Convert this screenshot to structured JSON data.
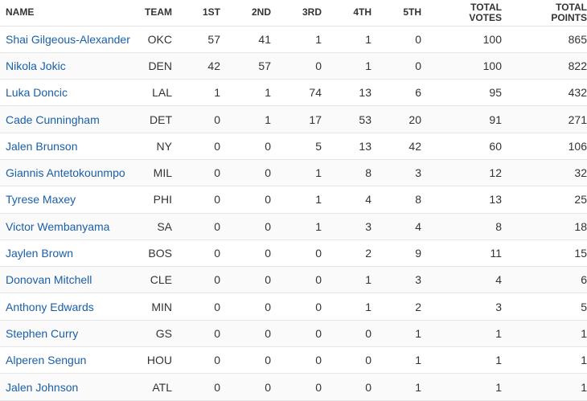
{
  "headers": {
    "name": "NAME",
    "team": "TEAM",
    "first": "1ST",
    "second": "2ND",
    "third": "3RD",
    "fourth": "4TH",
    "fifth": "5TH",
    "total_votes_line1": "TOTAL",
    "total_votes_line2": "VOTES",
    "total_points_line1": "TOTAL",
    "total_points_line2": "POINTS"
  },
  "rows": [
    {
      "name": "Shai Gilgeous-Alexander",
      "team": "OKC",
      "first": "57",
      "second": "41",
      "third": "1",
      "fourth": "1",
      "fifth": "0",
      "total_votes": "100",
      "total_points": "865"
    },
    {
      "name": "Nikola Jokic",
      "team": "DEN",
      "first": "42",
      "second": "57",
      "third": "0",
      "fourth": "1",
      "fifth": "0",
      "total_votes": "100",
      "total_points": "822"
    },
    {
      "name": "Luka Doncic",
      "team": "LAL",
      "first": "1",
      "second": "1",
      "third": "74",
      "fourth": "13",
      "fifth": "6",
      "total_votes": "95",
      "total_points": "432"
    },
    {
      "name": "Cade Cunningham",
      "team": "DET",
      "first": "0",
      "second": "1",
      "third": "17",
      "fourth": "53",
      "fifth": "20",
      "total_votes": "91",
      "total_points": "271"
    },
    {
      "name": "Jalen Brunson",
      "team": "NY",
      "first": "0",
      "second": "0",
      "third": "5",
      "fourth": "13",
      "fifth": "42",
      "total_votes": "60",
      "total_points": "106"
    },
    {
      "name": "Giannis Antetokounmpo",
      "team": "MIL",
      "first": "0",
      "second": "0",
      "third": "1",
      "fourth": "8",
      "fifth": "3",
      "total_votes": "12",
      "total_points": "32"
    },
    {
      "name": "Tyrese Maxey",
      "team": "PHI",
      "first": "0",
      "second": "0",
      "third": "1",
      "fourth": "4",
      "fifth": "8",
      "total_votes": "13",
      "total_points": "25"
    },
    {
      "name": "Victor Wembanyama",
      "team": "SA",
      "first": "0",
      "second": "0",
      "third": "1",
      "fourth": "3",
      "fifth": "4",
      "total_votes": "8",
      "total_points": "18"
    },
    {
      "name": "Jaylen Brown",
      "team": "BOS",
      "first": "0",
      "second": "0",
      "third": "0",
      "fourth": "2",
      "fifth": "9",
      "total_votes": "11",
      "total_points": "15"
    },
    {
      "name": "Donovan Mitchell",
      "team": "CLE",
      "first": "0",
      "second": "0",
      "third": "0",
      "fourth": "1",
      "fifth": "3",
      "total_votes": "4",
      "total_points": "6"
    },
    {
      "name": "Anthony Edwards",
      "team": "MIN",
      "first": "0",
      "second": "0",
      "third": "0",
      "fourth": "1",
      "fifth": "2",
      "total_votes": "3",
      "total_points": "5"
    },
    {
      "name": "Stephen Curry",
      "team": "GS",
      "first": "0",
      "second": "0",
      "third": "0",
      "fourth": "0",
      "fifth": "1",
      "total_votes": "1",
      "total_points": "1"
    },
    {
      "name": "Alperen Sengun",
      "team": "HOU",
      "first": "0",
      "second": "0",
      "third": "0",
      "fourth": "0",
      "fifth": "1",
      "total_votes": "1",
      "total_points": "1"
    },
    {
      "name": "Jalen Johnson",
      "team": "ATL",
      "first": "0",
      "second": "0",
      "third": "0",
      "fourth": "0",
      "fifth": "1",
      "total_votes": "1",
      "total_points": "1"
    }
  ],
  "colors": {
    "link": "#1a5fa8",
    "text": "#333333",
    "row_border": "#e6e6e6"
  }
}
